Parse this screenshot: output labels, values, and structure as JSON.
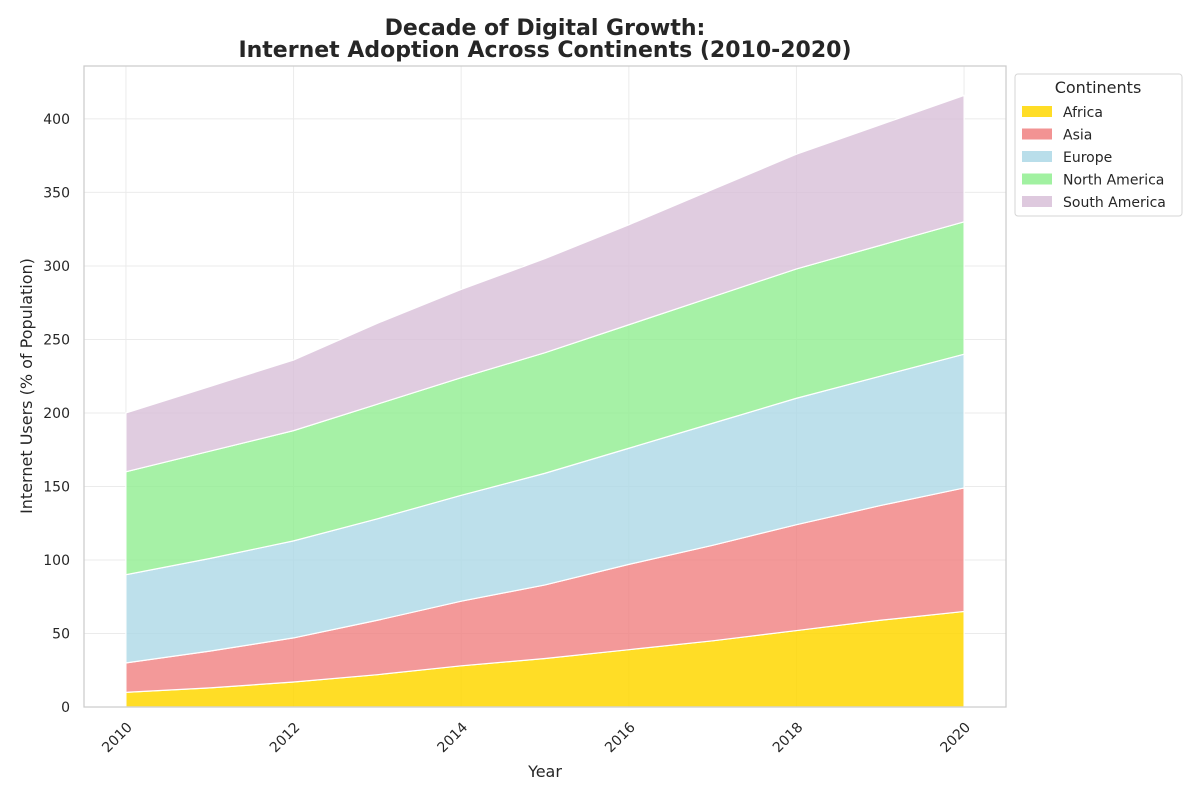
{
  "chart_data": {
    "type": "area",
    "stacked": true,
    "title_lines": [
      "Decade of Digital Growth:",
      "Internet Adoption Across Continents (2010-2020)"
    ],
    "xlabel": "Year",
    "ylabel": "Internet Users (% of Population)",
    "x": [
      2010,
      2011,
      2012,
      2013,
      2014,
      2015,
      2016,
      2017,
      2018,
      2019,
      2020
    ],
    "xticks": [
      "2010",
      "2012",
      "2014",
      "2016",
      "2018",
      "2020"
    ],
    "yticks": [
      "0",
      "50",
      "100",
      "150",
      "200",
      "250",
      "300",
      "350",
      "400"
    ],
    "ylim": [
      0,
      436
    ],
    "xlim": [
      2009.5,
      2020.5
    ],
    "grid": true,
    "legend": {
      "title": "Continents",
      "placement": "outside-top-right"
    },
    "series": [
      {
        "name": "Africa",
        "color": "#FFD700",
        "values": [
          10,
          13,
          17,
          22,
          28,
          33,
          39,
          45,
          52,
          59,
          65
        ]
      },
      {
        "name": "Asia",
        "color": "#F08080",
        "values": [
          20,
          25,
          30,
          37,
          44,
          50,
          58,
          65,
          72,
          78,
          84
        ]
      },
      {
        "name": "Europe",
        "color": "#ADD8E6",
        "values": [
          60,
          63,
          66,
          69,
          72,
          76,
          79,
          83,
          86,
          88,
          91
        ]
      },
      {
        "name": "North America",
        "color": "#90EE90",
        "values": [
          70,
          73,
          75,
          78,
          80,
          82,
          84,
          86,
          88,
          89,
          90
        ]
      },
      {
        "name": "South America",
        "color": "#D8BFD8",
        "values": [
          40,
          44,
          48,
          55,
          60,
          64,
          68,
          73,
          78,
          82,
          86
        ]
      }
    ]
  }
}
